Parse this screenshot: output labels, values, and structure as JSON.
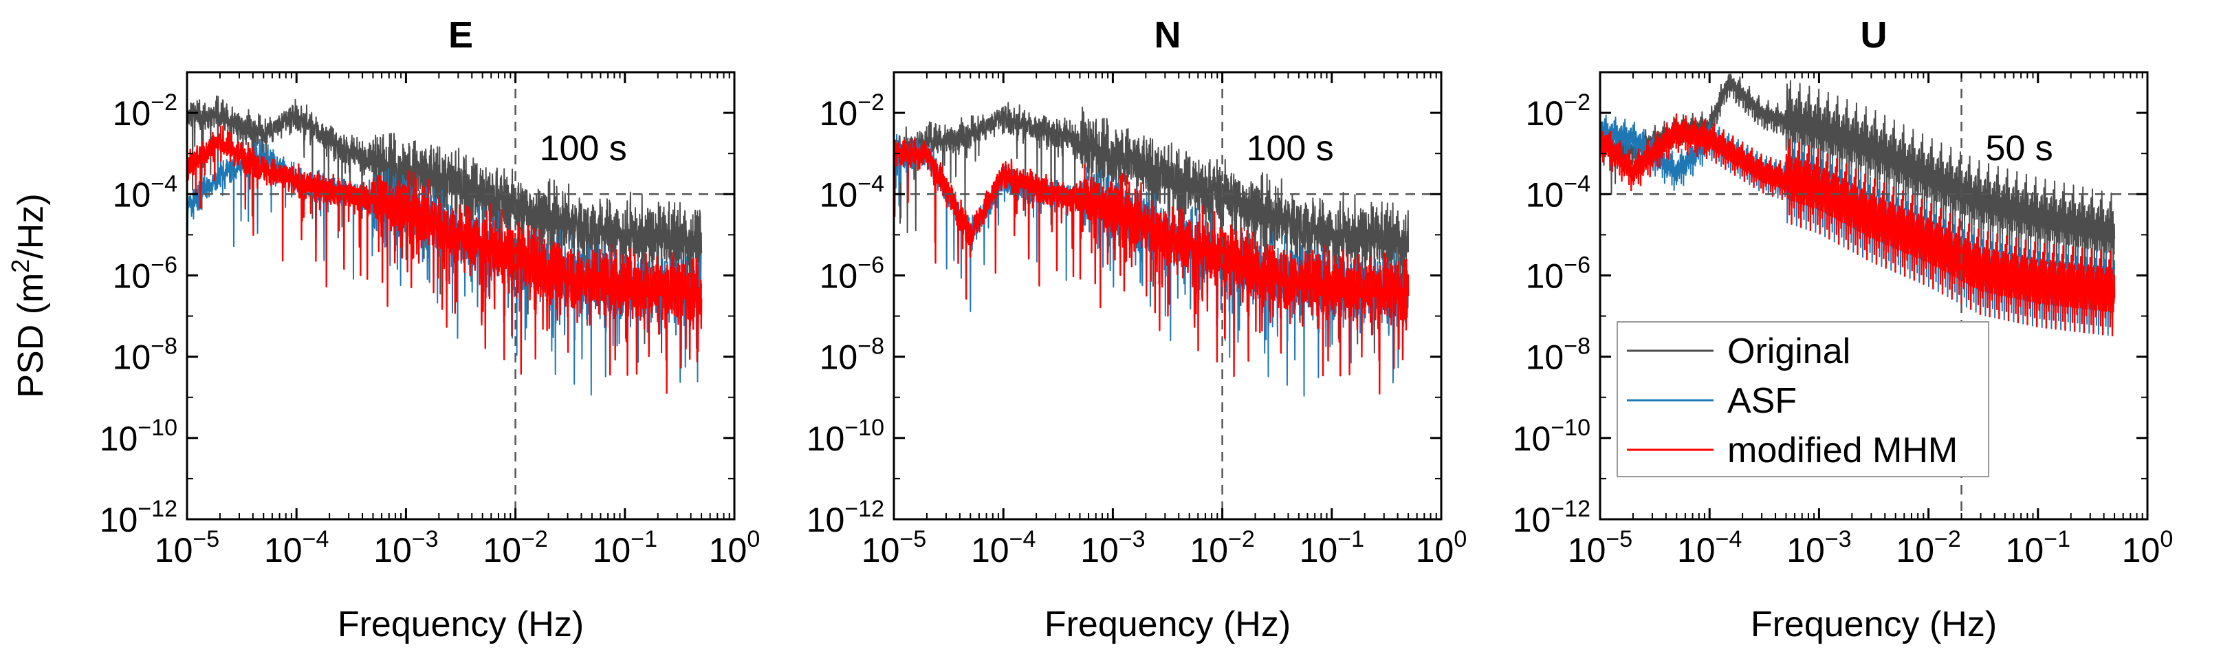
{
  "chart_data": {
    "type": "line",
    "x_scale": "log",
    "y_scale": "log",
    "xlim": [
      1e-05,
      1
    ],
    "ylim": [
      1e-12,
      0.1
    ],
    "x_ticks": [
      {
        "base": "10",
        "exp": "−5",
        "value": 1e-05
      },
      {
        "base": "10",
        "exp": "−4",
        "value": 0.0001
      },
      {
        "base": "10",
        "exp": "−3",
        "value": 0.001
      },
      {
        "base": "10",
        "exp": "−2",
        "value": 0.01
      },
      {
        "base": "10",
        "exp": "−1",
        "value": 0.1
      },
      {
        "base": "10",
        "exp": "0",
        "value": 1
      }
    ],
    "y_ticks": [
      {
        "base": "10",
        "exp": "−2",
        "value": 0.01
      },
      {
        "base": "10",
        "exp": "−4",
        "value": 0.0001
      },
      {
        "base": "10",
        "exp": "−6",
        "value": 1e-06
      },
      {
        "base": "10",
        "exp": "−8",
        "value": 1e-08
      },
      {
        "base": "10",
        "exp": "−10",
        "value": 1e-10
      },
      {
        "base": "10",
        "exp": "−12",
        "value": 1e-12
      }
    ],
    "xlabel": "Frequency (Hz)",
    "ylabel": {
      "prefix": "PSD (m",
      "sup": "2",
      "suffix": "/Hz)"
    },
    "reference_level": 0.0001,
    "series_styles": [
      {
        "name": "Original",
        "color": "#4d4d4d"
      },
      {
        "name": "ASF",
        "color": "#1f77b4"
      },
      {
        "name": "modified MHM",
        "color": "#ff0000"
      }
    ],
    "panels": [
      {
        "title": "E",
        "cutoff_freq": 0.01,
        "cutoff_label": "100 s",
        "series": [
          {
            "name": "Original",
            "f": [
              1e-05,
              2e-05,
              5e-05,
              0.0001,
              0.0003,
              0.001,
              0.003,
              0.01,
              0.03,
              0.1,
              0.5
            ],
            "psd": [
              0.009,
              0.009,
              0.003,
              0.008,
              0.001,
              0.0004,
              0.0002,
              5e-05,
              2e-05,
              1e-05,
              8e-06
            ]
          },
          {
            "name": "ASF",
            "f": [
              1e-05,
              2e-05,
              5e-05,
              0.0001,
              0.0003,
              0.001,
              0.003,
              0.01,
              0.03,
              0.1,
              0.5
            ],
            "psd": [
              5e-05,
              0.0003,
              0.001,
              0.0002,
              0.0001,
              5e-05,
              1e-05,
              3e-06,
              1e-06,
              6e-07,
              4e-07
            ]
          },
          {
            "name": "modified MHM",
            "f": [
              1e-05,
              2e-05,
              5e-05,
              0.0001,
              0.0003,
              0.001,
              0.003,
              0.01,
              0.03,
              0.1,
              0.5
            ],
            "psd": [
              0.0005,
              0.002,
              0.0004,
              0.0002,
              0.0001,
              5e-05,
              1e-05,
              3e-06,
              1e-06,
              6e-07,
              4e-07
            ]
          }
        ]
      },
      {
        "title": "N",
        "cutoff_freq": 0.01,
        "cutoff_label": "100 s",
        "series": [
          {
            "name": "Original",
            "f": [
              1e-05,
              2e-05,
              5e-05,
              0.0001,
              0.0003,
              0.001,
              0.003,
              0.01,
              0.03,
              0.1,
              0.5
            ],
            "psd": [
              0.001,
              0.002,
              0.003,
              0.007,
              0.003,
              0.001,
              0.0003,
              0.0001,
              3e-05,
              1e-05,
              8e-06
            ]
          },
          {
            "name": "ASF",
            "f": [
              1e-05,
              2e-05,
              5e-05,
              0.0001,
              0.0003,
              0.001,
              0.003,
              0.01,
              0.03,
              0.1,
              0.5
            ],
            "psd": [
              0.001,
              0.001,
              1e-05,
              0.0002,
              0.0001,
              5e-05,
              1e-05,
              3e-06,
              1e-06,
              6e-07,
              4e-07
            ]
          },
          {
            "name": "modified MHM",
            "f": [
              1e-05,
              2e-05,
              5e-05,
              0.0001,
              0.0003,
              0.001,
              0.003,
              0.01,
              0.03,
              0.1,
              0.5
            ],
            "psd": [
              0.001,
              0.001,
              1e-05,
              0.0003,
              0.0001,
              5e-05,
              1e-05,
              3e-06,
              1e-06,
              6e-07,
              4e-07
            ]
          }
        ]
      },
      {
        "title": "U",
        "cutoff_freq": 0.02,
        "cutoff_label": "50 s",
        "series": [
          {
            "name": "Original",
            "f": [
              1e-05,
              2e-05,
              5e-05,
              0.0001,
              0.00015,
              0.0003,
              0.001,
              0.003,
              0.01,
              0.03,
              0.1,
              0.5
            ],
            "psd": [
              0.002,
              0.001,
              0.003,
              0.004,
              0.05,
              0.008,
              0.003,
              0.001,
              0.0002,
              5e-05,
              2e-05,
              8e-06
            ]
          },
          {
            "name": "ASF",
            "f": [
              1e-05,
              2e-05,
              5e-05,
              0.0001,
              0.0003,
              0.001,
              0.003,
              0.01,
              0.03,
              0.1,
              0.5
            ],
            "psd": [
              0.003,
              0.002,
              0.0003,
              0.002,
              0.0003,
              0.0001,
              2e-05,
              5e-06,
              1e-06,
              5e-07,
              3e-07
            ]
          },
          {
            "name": "modified MHM",
            "f": [
              1e-05,
              2e-05,
              5e-05,
              0.0001,
              0.0003,
              0.001,
              0.003,
              0.01,
              0.03,
              0.1,
              0.5
            ],
            "psd": [
              0.002,
              0.0003,
              0.003,
              0.002,
              0.0003,
              0.0001,
              2e-05,
              5e-06,
              1e-06,
              5e-07,
              3e-07
            ]
          }
        ]
      }
    ]
  }
}
